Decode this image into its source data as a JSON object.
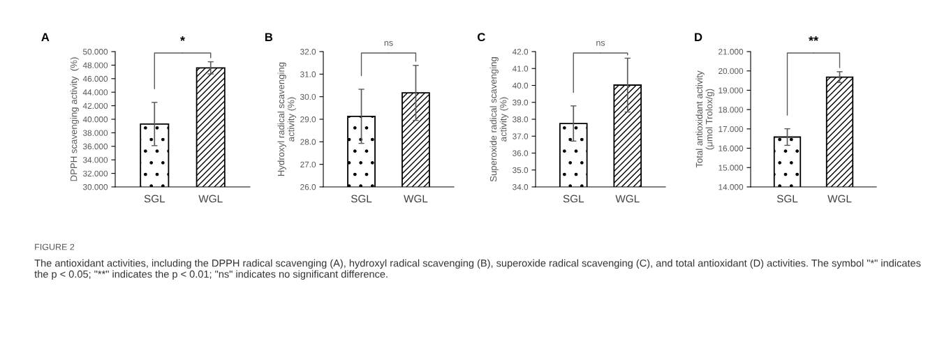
{
  "chart_data": [
    {
      "type": "bar",
      "title": "A",
      "ylabel": "DPPH scavenging activity  (%)",
      "categories": [
        "SGL",
        "WGL"
      ],
      "values": [
        39.3,
        47.6
      ],
      "errors": [
        3.2,
        0.9
      ],
      "ylim": [
        30,
        50
      ],
      "yticks": [
        {
          "value": 30,
          "label": "30.000"
        },
        {
          "value": 32,
          "label": "32.000"
        },
        {
          "value": 34,
          "label": "34.000"
        },
        {
          "value": 36,
          "label": "36.000"
        },
        {
          "value": 38,
          "label": "38.000"
        },
        {
          "value": 40,
          "label": "40.000"
        },
        {
          "value": 42,
          "label": "42.000"
        },
        {
          "value": 44,
          "label": "44.000"
        },
        {
          "value": 46,
          "label": "46.000"
        },
        {
          "value": 48,
          "label": "48.000"
        },
        {
          "value": 50,
          "label": "50.000"
        }
      ],
      "annotations": [
        "*",
        "FIGURE 2",
        "The antioxidant activities, including the DPPH radical scavenging (A), hydroxyl radical scavenging (B), superoxide radical scavenging (C), and total antioxidant (D) activities. The symbol \"*\" indicates the p < 0.05; \"**\" indicates the p < 0.01; \"ns\" indicates no significant difference."
      ]
    },
    {
      "type": "bar",
      "title": "B",
      "ylabel": "Hydroxyl radical scavenging\nactivity (%)",
      "categories": [
        "SGL",
        "WGL"
      ],
      "values": [
        29.13,
        30.17
      ],
      "errors": [
        1.2,
        1.22
      ],
      "ylim": [
        26,
        32
      ],
      "yticks": [
        {
          "value": 26,
          "label": "26.0"
        },
        {
          "value": 27,
          "label": "27.0"
        },
        {
          "value": 28,
          "label": "28.0"
        },
        {
          "value": 29,
          "label": "29.0"
        },
        {
          "value": 30,
          "label": "30.0"
        },
        {
          "value": 31,
          "label": "31.0"
        },
        {
          "value": 32,
          "label": "32.0"
        }
      ],
      "annotations": [
        "ns"
      ]
    },
    {
      "type": "bar",
      "title": "C",
      "ylabel": "Superoxide radical scavenging\nactivity (%)",
      "categories": [
        "SGL",
        "WGL"
      ],
      "values": [
        37.75,
        40.02
      ],
      "errors": [
        1.04,
        1.59
      ],
      "ylim": [
        34,
        42
      ],
      "yticks": [
        {
          "value": 34,
          "label": "34.0"
        },
        {
          "value": 35,
          "label": "35.0"
        },
        {
          "value": 36,
          "label": "36.0"
        },
        {
          "value": 37,
          "label": "37.0"
        },
        {
          "value": 38,
          "label": "38.0"
        },
        {
          "value": 39,
          "label": "39.0"
        },
        {
          "value": 40,
          "label": "40.0"
        },
        {
          "value": 41,
          "label": "41.0"
        },
        {
          "value": 42,
          "label": "42.0"
        }
      ],
      "annotations": [
        "ns"
      ]
    },
    {
      "type": "bar",
      "title": "D",
      "ylabel": "Total antioxidant activity\n(μmol Trolox/g)",
      "categories": [
        "SGL",
        "WGL"
      ],
      "values": [
        16.58,
        19.68
      ],
      "errors": [
        0.43,
        0.28
      ],
      "ylim": [
        14,
        21
      ],
      "yticks": [
        {
          "value": 14,
          "label": "14.000"
        },
        {
          "value": 15,
          "label": "15.000"
        },
        {
          "value": 16,
          "label": "16.000"
        },
        {
          "value": 17,
          "label": "17.000"
        },
        {
          "value": 18,
          "label": "18.000"
        },
        {
          "value": 19,
          "label": "19.000"
        },
        {
          "value": 20,
          "label": "20.000"
        },
        {
          "value": 21,
          "label": "21.000"
        }
      ],
      "annotations": [
        "**"
      ]
    }
  ]
}
